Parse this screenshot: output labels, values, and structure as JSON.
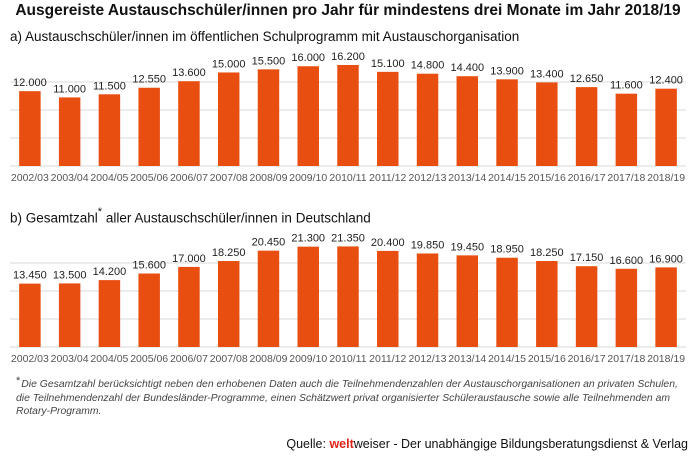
{
  "title": "Ausgereiste Austauschschüler/innen pro Jahr für mindestens drei Monate im Jahr 2018/19",
  "chart_a_subtitle": "a) Austauschschüler/innen im öffentlichen Schulprogramm mit Austauschorganisation",
  "chart_b_subtitle_main": "b) Gesamtzahl",
  "chart_b_subtitle_star": "*",
  "chart_b_subtitle_rest": " aller Austauschschüler/innen in Deutschland",
  "footnote_star": "*",
  "footnote_text": "Die Gesamtzahl berücksichtigt neben den erhobenen Daten auch die Teilnehmendenzahlen der Austauschorganisationen an privaten Schulen, die Teilnehmendenzahl der Bundesländer-Programme, einen Schätzwert privat organisierter Schüleraustausche sowie alle Teilnehmenden am Rotary-Programm.",
  "source_label": "Quelle: ",
  "source_brand_a": "welt",
  "source_brand_b": "weiser",
  "source_rest": " - Der unabhängige Bildungsberatungsdienst & Verlag",
  "colors": {
    "bar": "#e84e0f",
    "grid": "#d9d9d9",
    "brand": "#e0251b"
  },
  "chart_data": [
    {
      "type": "bar",
      "title": "a) Austauschschüler/innen im öffentlichen Schulprogramm mit Austauschorganisation",
      "categories": [
        "2002/03",
        "2003/04",
        "2004/05",
        "2005/06",
        "2006/07",
        "2007/08",
        "2008/09",
        "2009/10",
        "2010/11",
        "2011/12",
        "2012/13",
        "2013/14",
        "2014/15",
        "2015/16",
        "2016/17",
        "2017/18",
        "2018/19"
      ],
      "values": [
        12000,
        11000,
        11500,
        12550,
        13600,
        15000,
        15500,
        16000,
        16200,
        15100,
        14800,
        14400,
        13900,
        13400,
        12650,
        11600,
        12400
      ],
      "labels": [
        "12.000",
        "11.000",
        "11.500",
        "12.550",
        "13.600",
        "15.000",
        "15.500",
        "16.000",
        "16.200",
        "15.100",
        "14.800",
        "14.400",
        "13.900",
        "13.400",
        "12.650",
        "11.600",
        "12.400"
      ],
      "ylim": [
        0,
        17000
      ],
      "grid": true
    },
    {
      "type": "bar",
      "title": "b) Gesamtzahl* aller Austauschschüler/innen in Deutschland",
      "categories": [
        "2002/03",
        "2003/04",
        "2004/05",
        "2005/06",
        "2006/07",
        "2007/08",
        "2008/09",
        "2009/10",
        "2010/11",
        "2011/12",
        "2012/13",
        "2013/14",
        "2014/15",
        "2015/16",
        "2016/17",
        "2017/18",
        "2018/19"
      ],
      "values": [
        13450,
        13500,
        14200,
        15600,
        17000,
        18250,
        20450,
        21300,
        21350,
        20400,
        19850,
        19450,
        18950,
        18250,
        17150,
        16600,
        16900
      ],
      "labels": [
        "13.450",
        "13.500",
        "14.200",
        "15.600",
        "17.000",
        "18.250",
        "20.450",
        "21.300",
        "21.350",
        "20.400",
        "19.850",
        "19.450",
        "18.950",
        "18.250",
        "17.150",
        "16.600",
        "16.900"
      ],
      "ylim": [
        0,
        22500
      ],
      "grid": true
    }
  ]
}
